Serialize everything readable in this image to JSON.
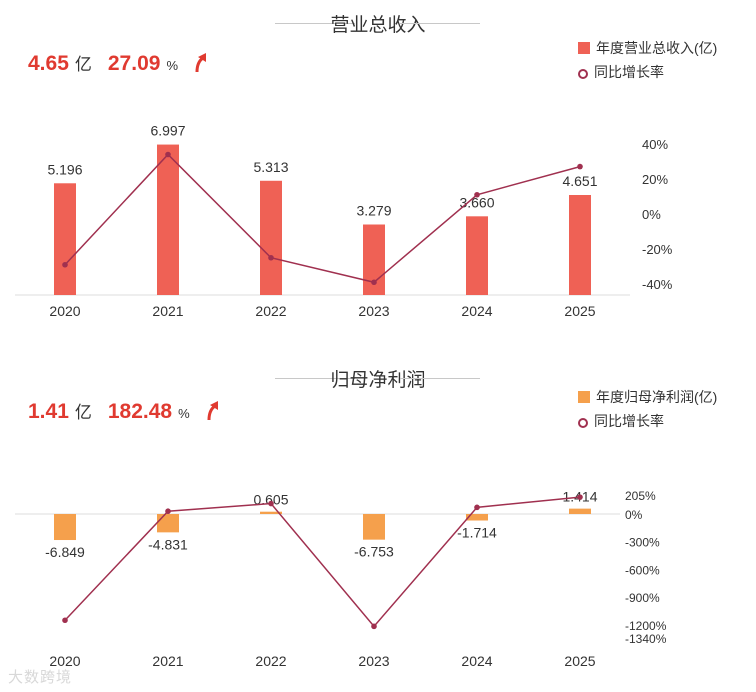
{
  "revenue": {
    "title": "营业总收入",
    "kpi": {
      "value": "4.65",
      "unit": "亿",
      "growth": "27.09",
      "pct_unit": "%"
    },
    "legend": {
      "bar_label": "年度营业总收入(亿)",
      "line_label": "同比增长率"
    },
    "colors": {
      "bar": "#ef6155",
      "line": "#a0304f",
      "kpi": "#e03a30"
    },
    "right_ticks": [
      "40%",
      "20%",
      "0%",
      "-20%",
      "-40%"
    ]
  },
  "profit": {
    "title": "归母净利润",
    "kpi": {
      "value": "1.41",
      "unit": "亿",
      "growth": "182.48",
      "pct_unit": "%"
    },
    "legend": {
      "bar_label": "年度归母净利润(亿)",
      "line_label": "同比增长率"
    },
    "colors": {
      "bar": "#f5a04c",
      "line": "#a0304f",
      "kpi": "#e03a30"
    },
    "right_ticks": [
      "205%",
      "0%",
      "-300%",
      "-600%",
      "-900%",
      "-1200%",
      "-1340%"
    ]
  },
  "watermark": "大数跨境",
  "chart_data": [
    {
      "type": "bar",
      "title": "营业总收入",
      "categories": [
        "2020",
        "2021",
        "2022",
        "2023",
        "2024",
        "2025"
      ],
      "series": [
        {
          "name": "年度营业总收入(亿)",
          "type": "bar",
          "values": [
            5.196,
            6.997,
            5.313,
            3.279,
            3.66,
            4.651
          ],
          "labels": [
            "5.196",
            "6.997",
            "5.313",
            "3.279",
            "3.660",
            "4.651"
          ]
        },
        {
          "name": "同比增长率",
          "type": "line",
          "axis": "right",
          "unit": "%",
          "values": [
            -29,
            34,
            -25,
            -39,
            11,
            27.09
          ]
        }
      ],
      "y2lim": [
        -40,
        40
      ]
    },
    {
      "type": "bar",
      "title": "归母净利润",
      "categories": [
        "2020",
        "2021",
        "2022",
        "2023",
        "2024",
        "2025"
      ],
      "series": [
        {
          "name": "年度归母净利润(亿)",
          "type": "bar",
          "values": [
            -6.849,
            -4.831,
            0.605,
            -6.753,
            -1.714,
            1.414
          ],
          "labels": [
            "-6.849",
            "-4.831",
            "0.605",
            "-6.753",
            "-1.714",
            "1.414"
          ]
        },
        {
          "name": "同比增长率",
          "type": "line",
          "axis": "right",
          "unit": "%",
          "values": [
            -1150,
            30,
            113,
            -1216,
            72,
            182.48
          ]
        }
      ],
      "y2lim": [
        -1340,
        205
      ]
    }
  ]
}
